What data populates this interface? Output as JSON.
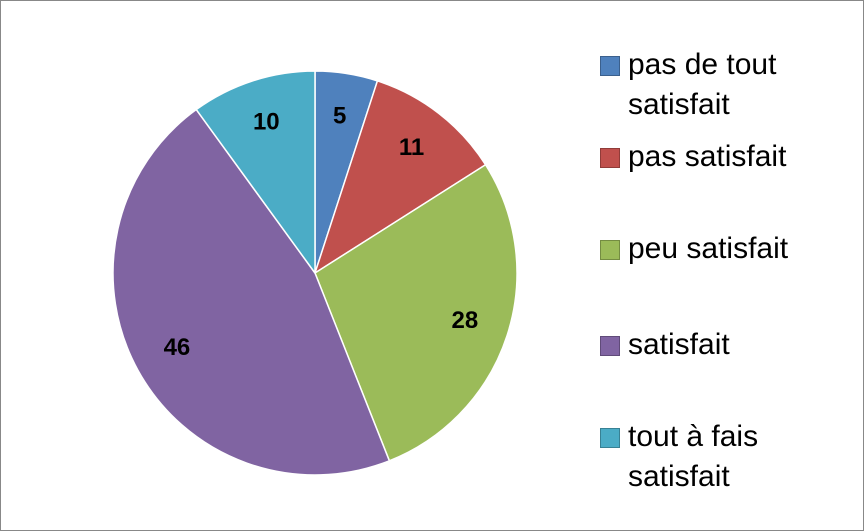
{
  "chart_data": {
    "type": "pie",
    "categories": [
      "pas de tout satisfait",
      "pas satisfait",
      "peu satisfait",
      "satisfait",
      "tout à fais satisfait"
    ],
    "values": [
      5,
      11,
      28,
      46,
      10
    ],
    "colors": [
      "#4f81bd",
      "#c0504d",
      "#9bbb59",
      "#8064a2",
      "#4bacc6"
    ],
    "legend": "right"
  }
}
